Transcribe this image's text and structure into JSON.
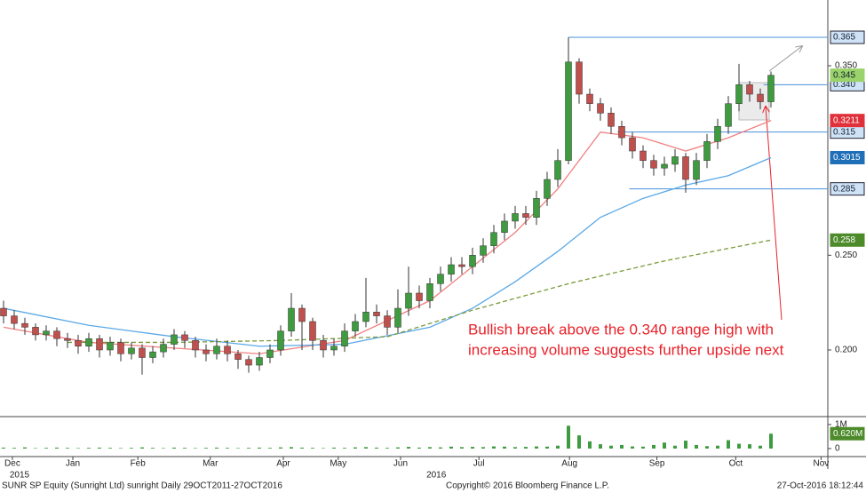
{
  "chart_data": {
    "type": "candlestick",
    "open": [
      0.222,
      0.218,
      0.214,
      0.212,
      0.208,
      0.21,
      0.206,
      0.205,
      0.202,
      0.206,
      0.2,
      0.204,
      0.198,
      0.201,
      0.196,
      0.199,
      0.203,
      0.208,
      0.205,
      0.2,
      0.198,
      0.202,
      0.198,
      0.195,
      0.192,
      0.196,
      0.2,
      0.21,
      0.222,
      0.215,
      0.205,
      0.2,
      0.202,
      0.21,
      0.215,
      0.22,
      0.218,
      0.212,
      0.222,
      0.23,
      0.226,
      0.235,
      0.24,
      0.245,
      0.244,
      0.25,
      0.255,
      0.262,
      0.268,
      0.272,
      0.27,
      0.28,
      0.29,
      0.3,
      0.352,
      0.335,
      0.33,
      0.325,
      0.318,
      0.312,
      0.305,
      0.3,
      0.296,
      0.298,
      0.302,
      0.29,
      0.3,
      0.31,
      0.318,
      0.33,
      0.34,
      0.335,
      0.331
    ],
    "high": [
      0.226,
      0.221,
      0.217,
      0.214,
      0.213,
      0.212,
      0.209,
      0.208,
      0.209,
      0.208,
      0.207,
      0.206,
      0.204,
      0.203,
      0.202,
      0.206,
      0.211,
      0.21,
      0.207,
      0.203,
      0.206,
      0.205,
      0.2,
      0.197,
      0.199,
      0.203,
      0.213,
      0.23,
      0.224,
      0.217,
      0.208,
      0.206,
      0.214,
      0.219,
      0.238,
      0.224,
      0.221,
      0.232,
      0.244,
      0.234,
      0.238,
      0.244,
      0.249,
      0.249,
      0.254,
      0.259,
      0.266,
      0.272,
      0.276,
      0.276,
      0.284,
      0.294,
      0.306,
      0.365,
      0.354,
      0.338,
      0.333,
      0.328,
      0.321,
      0.315,
      0.308,
      0.303,
      0.302,
      0.306,
      0.304,
      0.304,
      0.314,
      0.322,
      0.334,
      0.351,
      0.342,
      0.338,
      0.347
    ],
    "low": [
      0.214,
      0.211,
      0.208,
      0.205,
      0.205,
      0.202,
      0.201,
      0.198,
      0.199,
      0.196,
      0.197,
      0.194,
      0.195,
      0.187,
      0.193,
      0.196,
      0.2,
      0.201,
      0.196,
      0.194,
      0.195,
      0.194,
      0.19,
      0.188,
      0.189,
      0.193,
      0.197,
      0.207,
      0.2,
      0.2,
      0.196,
      0.197,
      0.199,
      0.207,
      0.212,
      0.214,
      0.208,
      0.209,
      0.218,
      0.222,
      0.222,
      0.231,
      0.236,
      0.24,
      0.24,
      0.246,
      0.251,
      0.258,
      0.264,
      0.266,
      0.266,
      0.276,
      0.286,
      0.298,
      0.33,
      0.326,
      0.321,
      0.314,
      0.308,
      0.301,
      0.296,
      0.292,
      0.292,
      0.294,
      0.283,
      0.287,
      0.296,
      0.306,
      0.314,
      0.326,
      0.331,
      0.327,
      0.328
    ],
    "close": [
      0.218,
      0.214,
      0.212,
      0.208,
      0.21,
      0.206,
      0.205,
      0.202,
      0.206,
      0.2,
      0.204,
      0.198,
      0.201,
      0.196,
      0.199,
      0.203,
      0.208,
      0.205,
      0.2,
      0.198,
      0.202,
      0.198,
      0.195,
      0.192,
      0.196,
      0.2,
      0.21,
      0.222,
      0.215,
      0.205,
      0.2,
      0.202,
      0.21,
      0.215,
      0.22,
      0.218,
      0.212,
      0.222,
      0.23,
      0.226,
      0.235,
      0.24,
      0.245,
      0.244,
      0.25,
      0.255,
      0.262,
      0.268,
      0.272,
      0.27,
      0.28,
      0.29,
      0.3,
      0.352,
      0.335,
      0.33,
      0.325,
      0.318,
      0.312,
      0.305,
      0.3,
      0.296,
      0.298,
      0.302,
      0.29,
      0.3,
      0.31,
      0.318,
      0.33,
      0.34,
      0.335,
      0.331,
      0.345
    ],
    "up_color": "#3f9b3f",
    "down_color": "#c0504d",
    "moving_averages": [
      {
        "color": "#f08080",
        "x": [
          0,
          8,
          16,
          24,
          32,
          40,
          48,
          52,
          56,
          60,
          64,
          68,
          72
        ],
        "values": [
          0.212,
          0.204,
          0.201,
          0.198,
          0.205,
          0.226,
          0.262,
          0.285,
          0.315,
          0.312,
          0.305,
          0.312,
          0.3211
        ],
        "tag": {
          "value": 0.3211,
          "label": "0.3211"
        },
        "tag_color": "#e0303a"
      },
      {
        "color": "#5aa8e6",
        "x": [
          0,
          8,
          16,
          24,
          32,
          40,
          44,
          48,
          52,
          56,
          60,
          64,
          68,
          72
        ],
        "values": [
          0.222,
          0.213,
          0.207,
          0.202,
          0.203,
          0.212,
          0.222,
          0.236,
          0.252,
          0.27,
          0.28,
          0.287,
          0.292,
          0.3015
        ],
        "tag": {
          "value": 0.3015,
          "label": "0.3015"
        },
        "tag_color": "#1f6fb8"
      },
      {
        "color": "#7a9a3a",
        "dashed": true,
        "x": [
          6,
          16,
          26,
          36,
          44,
          53,
          62,
          72
        ],
        "values": [
          0.204,
          0.204,
          0.205,
          0.207,
          0.221,
          0.235,
          0.247,
          0.258
        ],
        "tag": {
          "value": 0.258,
          "label": "0.258"
        },
        "tag_color": "#4c8a2a"
      }
    ],
    "last_tag": {
      "value": 0.345,
      "label": "0.345"
    },
    "levels": [
      {
        "value": 0.365,
        "label": "0.365",
        "from": 53
      },
      {
        "value": 0.34,
        "label": "0.340",
        "from": 71.3
      },
      {
        "value": 0.315,
        "label": "0.315",
        "from": 57.6
      },
      {
        "value": 0.285,
        "label": "0.285",
        "from": 58.7
      }
    ],
    "level_color": "#4a90d9",
    "ylim": [
      0.1653,
      0.3847
    ],
    "yticks": [
      {
        "value": 0.2,
        "label": "0.200"
      },
      {
        "value": 0.25,
        "label": "0.250"
      },
      {
        "value": 0.35,
        "label": "0.350"
      }
    ],
    "xlim": [
      -0.333,
      77.333
    ],
    "xticks": [
      {
        "value": 0.83,
        "label": "Dec"
      },
      {
        "value": 6.5,
        "label": "Jan"
      },
      {
        "value": 12.6,
        "label": "Feb"
      },
      {
        "value": 19.4,
        "label": "Mar"
      },
      {
        "value": 26.25,
        "label": "Apr"
      },
      {
        "value": 31.4,
        "label": "May"
      },
      {
        "value": 37.25,
        "label": "Jun"
      },
      {
        "value": 44.6,
        "label": "Jul"
      },
      {
        "value": 53.1,
        "label": "Aug"
      },
      {
        "value": 61.3,
        "label": "Sep"
      },
      {
        "value": 68.7,
        "label": "Oct"
      },
      {
        "value": 76.7,
        "label": "Nov"
      }
    ],
    "year_labels": [
      {
        "value": 1.5,
        "label": "2015"
      },
      {
        "value": 40.6,
        "label": "2016"
      }
    ],
    "volume": [
      40000,
      30000,
      50000,
      20000,
      30000,
      40000,
      30000,
      20000,
      30000,
      40000,
      30000,
      20000,
      30000,
      50000,
      30000,
      20000,
      40000,
      30000,
      20000,
      30000,
      40000,
      30000,
      20000,
      30000,
      40000,
      30000,
      50000,
      60000,
      40000,
      30000,
      20000,
      40000,
      30000,
      50000,
      60000,
      40000,
      30000,
      50000,
      70000,
      40000,
      60000,
      50000,
      80000,
      60000,
      70000,
      60000,
      90000,
      80000,
      60000,
      70000,
      90000,
      80000,
      120000,
      950000,
      550000,
      300000,
      180000,
      120000,
      150000,
      90000,
      80000,
      150000,
      250000,
      120000,
      330000,
      150000,
      100000,
      120000,
      350000,
      200000,
      180000,
      120000,
      620000
    ],
    "volume_color": "#3f9b3f",
    "volume_ylim": [
      -260000,
      1220000
    ],
    "volume_yticks": [
      0,
      {
        "value": 1000000,
        "label": "1M"
      }
    ],
    "volume_tag": {
      "value": 620000,
      "label": "0.620M"
    },
    "annotation": [
      "Bullish break above the 0.340 range high with",
      "increasing volume suggests further upside next"
    ],
    "footer": {
      "left": "SUNR SP Equity (Sunright Ltd) sunright  Daily 29OCT2011-27OCT2016",
      "center": "Copyright© 2016 Bloomberg Finance L.P.",
      "right": "27-Oct-2016 18:12:44"
    }
  }
}
